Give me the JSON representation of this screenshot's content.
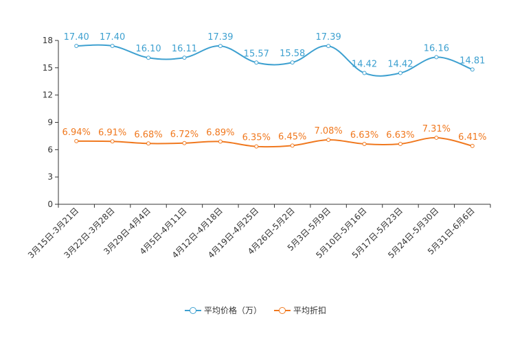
{
  "chart_data": {
    "type": "line",
    "categories": [
      "3月15日-3月21日",
      "3月22日-3月28日",
      "3月29日-4月4日",
      "4月5日-4月11日",
      "4月12日-4月18日",
      "4月19日-4月25日",
      "4月26日-5月2日",
      "5月3日-5月9日",
      "5月10日-5月16日",
      "5月17日-5月23日",
      "5月24日-5月30日",
      "5月31日-6月6日"
    ],
    "series": [
      {
        "name": "平均价格（万）",
        "color": "#3da0d0",
        "values": [
          17.4,
          17.4,
          16.1,
          16.11,
          17.39,
          15.57,
          15.58,
          17.39,
          14.42,
          14.42,
          16.16,
          14.81
        ],
        "labels": [
          "17.40",
          "17.40",
          "16.10",
          "16.11",
          "17.39",
          "15.57",
          "15.58",
          "17.39",
          "14.42",
          "14.42",
          "16.16",
          "14.81"
        ]
      },
      {
        "name": "平均折扣",
        "color": "#f0781e",
        "values": [
          6.94,
          6.91,
          6.68,
          6.72,
          6.89,
          6.35,
          6.45,
          7.08,
          6.63,
          6.63,
          7.31,
          6.41
        ],
        "labels": [
          "6.94%",
          "6.91%",
          "6.68%",
          "6.72%",
          "6.89%",
          "6.35%",
          "6.45%",
          "7.08%",
          "6.63%",
          "6.63%",
          "7.31%",
          "6.41%"
        ]
      }
    ],
    "yticks": [
      "0",
      "3",
      "6",
      "9",
      "12",
      "15",
      "18"
    ],
    "ylim": [
      0,
      18
    ],
    "grid": false,
    "legend": "bottom-center"
  }
}
